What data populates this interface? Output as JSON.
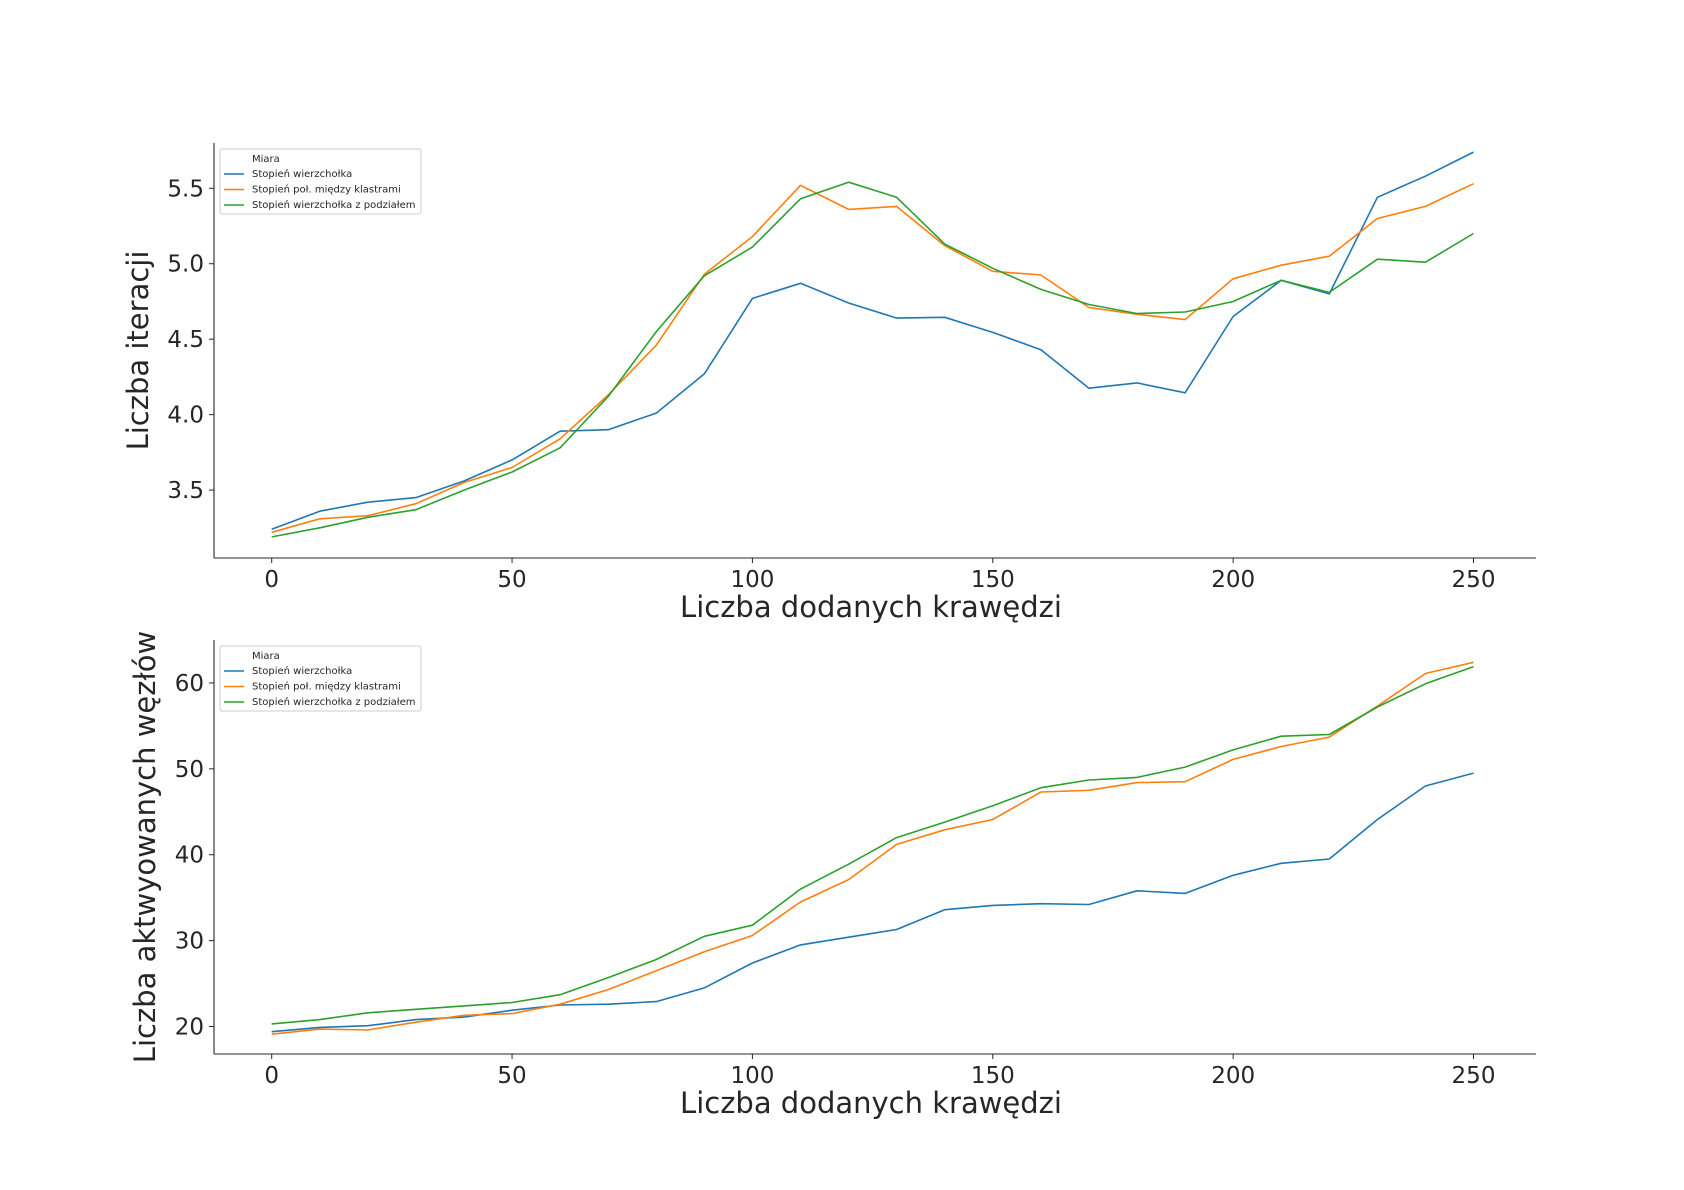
{
  "colors": {
    "series": [
      "#1f77b4",
      "#ff7f0e",
      "#2ca02c"
    ],
    "axis": "#262626"
  },
  "chart_data": [
    {
      "type": "line",
      "xlabel": "Liczba dodanych krawędzi",
      "ylabel": "Liczba iteracji",
      "xlim": [
        -12,
        263
      ],
      "ylim": [
        3.05,
        5.8
      ],
      "xticks": [
        0,
        50,
        100,
        150,
        200,
        250
      ],
      "yticks": [
        3.5,
        4.0,
        4.5,
        5.0,
        5.5
      ],
      "ytick_labels": [
        "3.5",
        "4.0",
        "4.5",
        "5.0",
        "5.5"
      ],
      "grid": false,
      "legend": {
        "title": "Miara",
        "position": "top-left"
      },
      "x": [
        0,
        10,
        20,
        30,
        40,
        50,
        60,
        70,
        80,
        90,
        100,
        110,
        120,
        130,
        140,
        150,
        160,
        170,
        180,
        190,
        200,
        210,
        220,
        230,
        240,
        250
      ],
      "series": [
        {
          "name": "Stopień wierzchołka",
          "values": [
            3.24,
            3.36,
            3.42,
            3.45,
            3.56,
            3.7,
            3.89,
            3.9,
            4.01,
            4.27,
            4.77,
            4.87,
            4.74,
            4.64,
            4.645,
            4.545,
            4.43,
            4.175,
            4.21,
            4.145,
            4.65,
            4.89,
            4.8,
            5.44,
            5.58,
            5.74
          ]
        },
        {
          "name": "Stopień poł. między klastrami",
          "values": [
            3.22,
            3.31,
            3.33,
            3.41,
            3.55,
            3.65,
            3.84,
            4.13,
            4.46,
            4.93,
            5.18,
            5.52,
            5.36,
            5.38,
            5.12,
            4.95,
            4.925,
            4.71,
            4.665,
            4.63,
            4.9,
            4.99,
            5.05,
            5.3,
            5.38,
            5.53
          ]
        },
        {
          "name": "Stopień wierzchołka z podziałem",
          "values": [
            3.19,
            3.25,
            3.32,
            3.37,
            3.5,
            3.62,
            3.78,
            4.12,
            4.55,
            4.92,
            5.11,
            5.43,
            5.54,
            5.44,
            5.13,
            4.97,
            4.83,
            4.73,
            4.67,
            4.68,
            4.75,
            4.89,
            4.81,
            5.03,
            5.01,
            5.2
          ]
        }
      ]
    },
    {
      "type": "line",
      "xlabel": "Liczba dodanych krawędzi",
      "ylabel": "Liczba aktwyowanych węzłów",
      "xlim": [
        -12,
        263
      ],
      "ylim": [
        16.8,
        65
      ],
      "xticks": [
        0,
        50,
        100,
        150,
        200,
        250
      ],
      "yticks": [
        20,
        30,
        40,
        50,
        60
      ],
      "ytick_labels": [
        "20",
        "30",
        "40",
        "50",
        "60"
      ],
      "grid": false,
      "legend": {
        "title": "Miara",
        "position": "top-left"
      },
      "x": [
        0,
        10,
        20,
        30,
        40,
        50,
        60,
        70,
        80,
        90,
        100,
        110,
        120,
        130,
        140,
        150,
        160,
        170,
        180,
        190,
        200,
        210,
        220,
        230,
        240,
        250
      ],
      "series": [
        {
          "name": "Stopień wierzchołka",
          "values": [
            19.4,
            19.9,
            20.1,
            20.8,
            21.1,
            21.9,
            22.5,
            22.6,
            22.9,
            24.5,
            27.4,
            29.5,
            30.4,
            31.3,
            33.6,
            34.1,
            34.3,
            34.2,
            35.8,
            35.5,
            37.6,
            39.0,
            39.5,
            44.1,
            48.0,
            49.5
          ]
        },
        {
          "name": "Stopień poł. między klastrami",
          "values": [
            19.1,
            19.7,
            19.6,
            20.5,
            21.3,
            21.5,
            22.6,
            24.3,
            26.5,
            28.7,
            30.6,
            34.5,
            37.1,
            41.2,
            42.9,
            44.1,
            47.3,
            47.5,
            48.4,
            48.5,
            51.1,
            52.6,
            53.7,
            57.3,
            61.1,
            62.4
          ]
        },
        {
          "name": "Stopień wierzchołka z podziałem",
          "values": [
            20.3,
            20.8,
            21.6,
            22.0,
            22.4,
            22.8,
            23.7,
            25.7,
            27.8,
            30.5,
            31.8,
            36.0,
            38.9,
            42.0,
            43.8,
            45.7,
            47.8,
            48.7,
            49.0,
            50.2,
            52.2,
            53.8,
            54.0,
            57.2,
            59.9,
            61.9
          ]
        }
      ]
    }
  ]
}
